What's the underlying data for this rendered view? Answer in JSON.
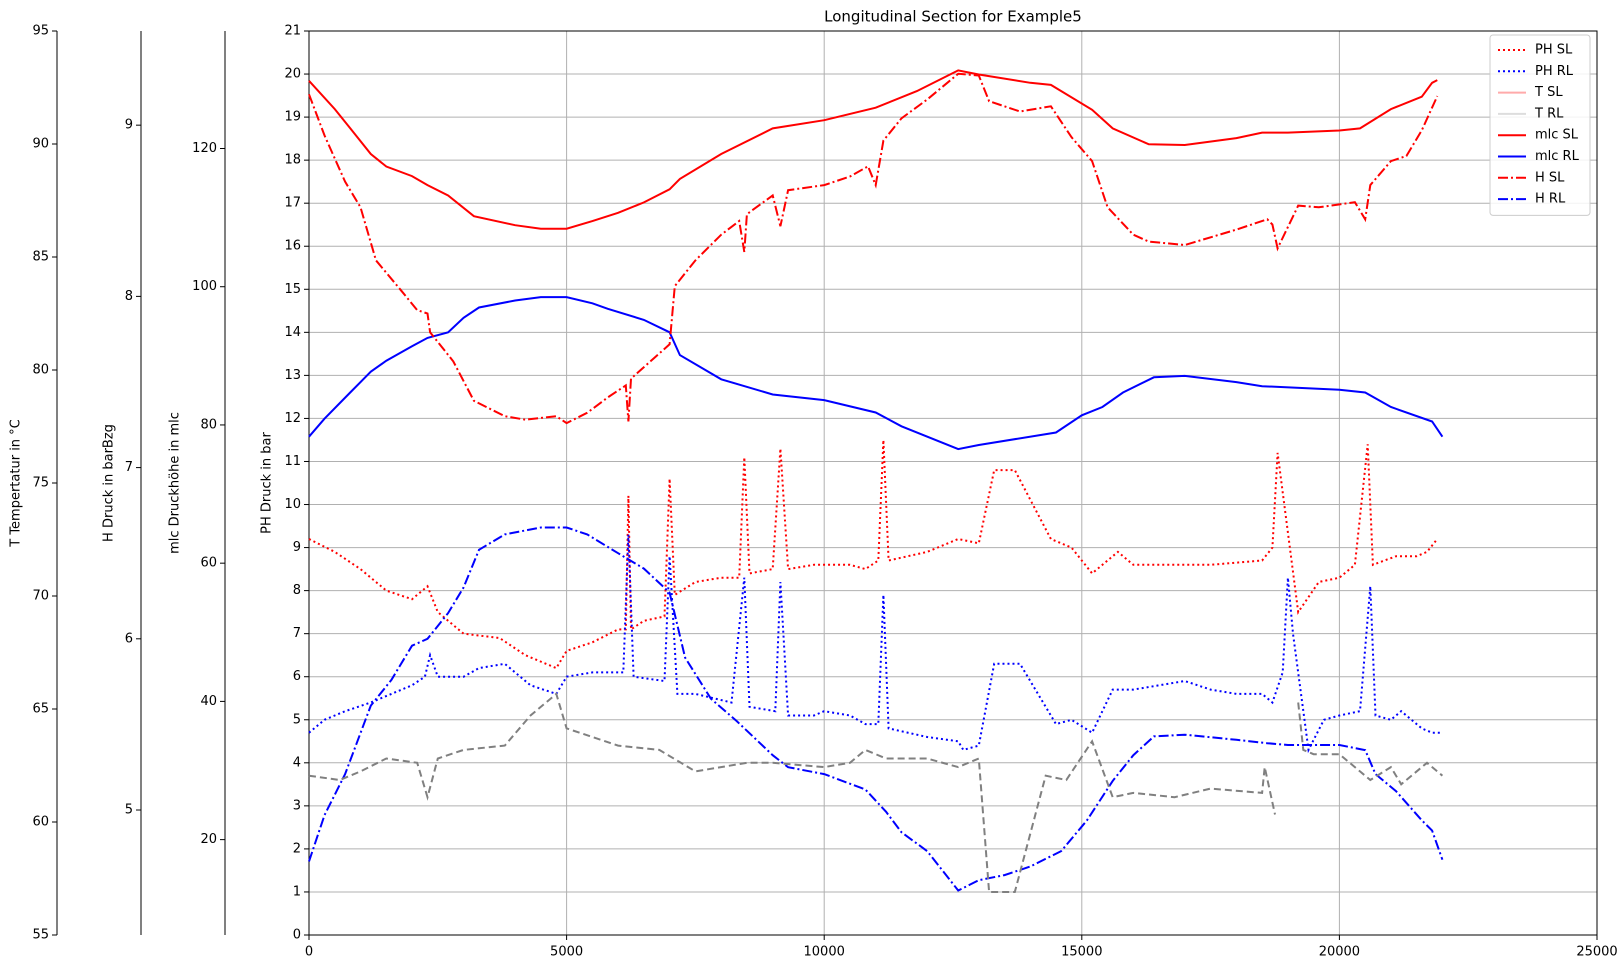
{
  "chart_data": {
    "type": "line",
    "title": "Longitudinal Section for Example5",
    "xlim": [
      0,
      25000
    ],
    "xticks": [
      0,
      5000,
      10000,
      15000,
      20000,
      25000
    ],
    "grid": true,
    "legend": "upper right",
    "axes": [
      {
        "label": "PH Druck in bar",
        "ylim": [
          0,
          21
        ],
        "yticks": [
          0,
          1,
          2,
          3,
          4,
          5,
          6,
          7,
          8,
          9,
          10,
          11,
          12,
          13,
          14,
          15,
          16,
          17,
          18,
          19,
          20,
          21
        ]
      },
      {
        "label": "mlc Druckhöhe in mlc",
        "ylim": [
          6.2,
          137
        ],
        "yticks": [
          20,
          40,
          60,
          80,
          100,
          120
        ]
      },
      {
        "label": "H Druck in barBzg",
        "ylim": [
          4.27,
          9.55
        ],
        "yticks": [
          5,
          6,
          7,
          8,
          9
        ]
      },
      {
        "label": "T Tempertatur in °C",
        "ylim": [
          55,
          95
        ],
        "yticks": [
          55,
          60,
          65,
          70,
          75,
          80,
          85,
          90,
          95
        ]
      }
    ],
    "series": [
      {
        "name": "PH SL",
        "color": "#ff0000",
        "dash": "dotted",
        "axis": 0,
        "x": [
          0,
          500,
          1000,
          1500,
          2000,
          2300,
          2500,
          3000,
          3700,
          4200,
          4800,
          5000,
          5500,
          6000,
          6150,
          6200,
          6250,
          6500,
          6900,
          7000,
          7100,
          7500,
          8000,
          8350,
          8450,
          8550,
          9000,
          9150,
          9300,
          9800,
          10000,
          10500,
          10800,
          11050,
          11150,
          11250,
          12000,
          12600,
          13000,
          13300,
          13700,
          14400,
          14800,
          15200,
          15700,
          16000,
          16500,
          17000,
          17500,
          18500,
          18700,
          18800,
          19200,
          19600,
          20000,
          20300,
          20550,
          20650,
          21100,
          21500,
          21700,
          21900
        ],
        "values": [
          9.2,
          8.9,
          8.5,
          8.0,
          7.8,
          8.1,
          7.5,
          7.0,
          6.9,
          6.5,
          6.2,
          6.6,
          6.8,
          7.1,
          7.1,
          10.2,
          7.1,
          7.3,
          7.4,
          10.6,
          7.9,
          8.2,
          8.3,
          8.3,
          11.1,
          8.4,
          8.5,
          11.3,
          8.5,
          8.6,
          8.6,
          8.6,
          8.5,
          8.7,
          11.5,
          8.7,
          8.9,
          9.2,
          9.1,
          10.8,
          10.8,
          9.2,
          9.0,
          8.4,
          8.9,
          8.6,
          8.6,
          8.6,
          8.6,
          8.7,
          9.0,
          11.2,
          7.5,
          8.2,
          8.3,
          8.6,
          11.4,
          8.6,
          8.8,
          8.8,
          8.9,
          9.2
        ]
      },
      {
        "name": "PH RL",
        "color": "#0000ff",
        "dash": "dotted",
        "axis": 0,
        "x": [
          0,
          300,
          700,
          1200,
          1600,
          2000,
          2250,
          2350,
          2500,
          3000,
          3300,
          3800,
          4300,
          4800,
          5000,
          5500,
          6100,
          6200,
          6300,
          6900,
          7000,
          7150,
          7500,
          8200,
          8450,
          8550,
          9050,
          9150,
          9300,
          9800,
          10000,
          10500,
          10800,
          11050,
          11150,
          11250,
          12000,
          12600,
          12700,
          13000,
          13300,
          13800,
          14500,
          14800,
          15200,
          15600,
          16000,
          16500,
          17000,
          17500,
          18000,
          18500,
          18700,
          18900,
          19000,
          19100,
          19400,
          19700,
          20000,
          20400,
          20600,
          20700,
          21000,
          21200,
          21600,
          21800,
          22000
        ],
        "values": [
          4.7,
          5.0,
          5.2,
          5.4,
          5.6,
          5.8,
          6.0,
          6.5,
          6.0,
          6.0,
          6.2,
          6.3,
          5.8,
          5.6,
          6.0,
          6.1,
          6.1,
          9.3,
          6.0,
          5.9,
          8.8,
          5.6,
          5.6,
          5.4,
          8.3,
          5.3,
          5.2,
          8.2,
          5.1,
          5.1,
          5.2,
          5.1,
          4.9,
          4.9,
          7.9,
          4.8,
          4.6,
          4.5,
          4.3,
          4.4,
          6.3,
          6.3,
          4.9,
          5.0,
          4.7,
          5.7,
          5.7,
          5.8,
          5.9,
          5.7,
          5.6,
          5.6,
          5.4,
          6.1,
          8.3,
          7.0,
          4.3,
          5.0,
          5.1,
          5.2,
          8.1,
          5.1,
          5.0,
          5.2,
          4.8,
          4.7,
          4.7
        ]
      },
      {
        "name": "T SL",
        "color": "#ffaaaa",
        "dash": "solid",
        "axis": 3,
        "x": [],
        "values": []
      },
      {
        "name": "T RL",
        "color": "#dddddd",
        "dash": "solid",
        "axis": 3,
        "x": [],
        "values": []
      },
      {
        "name": "mlc SL",
        "color": "#ff0000",
        "dash": "solid",
        "axis": 1,
        "x": [
          0,
          500,
          900,
          1200,
          1500,
          2000,
          2300,
          2700,
          3200,
          4000,
          4500,
          5000,
          5500,
          6000,
          6500,
          7000,
          7200,
          8000,
          9000,
          10000,
          11000,
          11800,
          12600,
          13000,
          14000,
          14400,
          15200,
          15600,
          16300,
          17000,
          18000,
          18500,
          19000,
          20000,
          20400,
          21000,
          21600,
          21800,
          21900
        ],
        "values": [
          129.8,
          125.7,
          122,
          119.2,
          117.4,
          116,
          114.7,
          113.2,
          110.2,
          108.9,
          108.4,
          108.4,
          109.5,
          110.7,
          112.2,
          114.1,
          115.6,
          119.2,
          122.9,
          124.1,
          125.9,
          128.3,
          131.3,
          130.7,
          129.5,
          129.2,
          125.6,
          122.9,
          120.6,
          120.5,
          121.5,
          122.3,
          122.3,
          122.6,
          122.9,
          125.7,
          127.5,
          129.5,
          129.9
        ]
      },
      {
        "name": "mlc RL",
        "color": "#0000ff",
        "dash": "solid",
        "axis": 1,
        "x": [
          0,
          300,
          800,
          1200,
          1500,
          2000,
          2300,
          2700,
          3000,
          3300,
          4000,
          4500,
          5000,
          5500,
          5800,
          6500,
          7000,
          7200,
          8000,
          9000,
          10000,
          11000,
          11500,
          12600,
          13000,
          14500,
          15000,
          15400,
          15800,
          16400,
          17000,
          18000,
          18500,
          20000,
          20500,
          21000,
          21800,
          22000
        ],
        "values": [
          78.3,
          80.9,
          84.7,
          87.7,
          89.3,
          91.4,
          92.6,
          93.4,
          95.5,
          97,
          98,
          98.5,
          98.5,
          97.6,
          96.8,
          95.2,
          93.4,
          90.1,
          86.6,
          84.4,
          83.6,
          81.8,
          79.8,
          76.5,
          77.1,
          78.9,
          81.4,
          82.6,
          84.7,
          86.9,
          87.1,
          86.2,
          85.6,
          85.1,
          84.7,
          82.6,
          80.5,
          78.3
        ]
      },
      {
        "name": "H SL",
        "color": "#ff0000",
        "dash": "dashdot",
        "axis": 2,
        "x": [
          0,
          300,
          700,
          1000,
          1300,
          1800,
          2100,
          2300,
          2350,
          2800,
          3200,
          3800,
          4200,
          4800,
          5000,
          5400,
          5800,
          6150,
          6200,
          6250,
          6700,
          7000,
          7100,
          7500,
          8000,
          8350,
          8450,
          8500,
          9000,
          9150,
          9300,
          10000,
          10500,
          10850,
          11000,
          11150,
          11500,
          12000,
          12600,
          13000,
          13200,
          13800,
          14400,
          14800,
          15200,
          15500,
          16000,
          16300,
          17000,
          18000,
          18600,
          18700,
          18800,
          19200,
          19600,
          20300,
          20500,
          20600,
          21000,
          21300,
          21600,
          21900
        ],
        "values": [
          9.18,
          8.94,
          8.67,
          8.52,
          8.21,
          8.03,
          7.92,
          7.9,
          7.79,
          7.62,
          7.39,
          7.3,
          7.28,
          7.3,
          7.26,
          7.32,
          7.41,
          7.48,
          7.27,
          7.52,
          7.64,
          7.72,
          8.06,
          8.21,
          8.36,
          8.44,
          8.26,
          8.48,
          8.59,
          8.41,
          8.62,
          8.65,
          8.7,
          8.76,
          8.65,
          8.91,
          9.04,
          9.15,
          9.3,
          9.29,
          9.14,
          9.08,
          9.11,
          8.93,
          8.79,
          8.52,
          8.36,
          8.32,
          8.3,
          8.39,
          8.45,
          8.42,
          8.28,
          8.53,
          8.52,
          8.55,
          8.45,
          8.65,
          8.79,
          8.82,
          8.97,
          9.17
        ]
      },
      {
        "name": "H RL",
        "color": "#0000ff",
        "dash": "dashdot",
        "axis": 2,
        "x": [
          0,
          300,
          700,
          1200,
          1600,
          2000,
          2300,
          2700,
          3000,
          3300,
          3800,
          4500,
          5000,
          5400,
          6000,
          6500,
          7000,
          7300,
          7800,
          8300,
          9000,
          9300,
          10000,
          10800,
          11200,
          11500,
          12000,
          12600,
          13000,
          13500,
          14000,
          14600,
          15100,
          15600,
          16000,
          16400,
          17000,
          18000,
          18600,
          19000,
          19500,
          20000,
          20500,
          20700,
          21100,
          21600,
          21800,
          22000
        ],
        "values": [
          4.7,
          4.97,
          5.21,
          5.61,
          5.76,
          5.96,
          6.0,
          6.15,
          6.3,
          6.52,
          6.61,
          6.65,
          6.65,
          6.61,
          6.5,
          6.41,
          6.27,
          5.89,
          5.65,
          5.52,
          5.32,
          5.25,
          5.21,
          5.12,
          4.99,
          4.87,
          4.76,
          4.53,
          4.59,
          4.62,
          4.67,
          4.76,
          4.94,
          5.17,
          5.32,
          5.43,
          5.44,
          5.41,
          5.39,
          5.38,
          5.38,
          5.38,
          5.35,
          5.21,
          5.11,
          4.94,
          4.88,
          4.71
        ]
      },
      {
        "color": "#808080",
        "dash": "dashed",
        "axis": 0,
        "x": [
          0,
          600,
          1000,
          1500,
          2100,
          2300,
          2500,
          3000,
          3800,
          4300,
          4800,
          5000,
          5500,
          6000,
          6800,
          7500,
          8500,
          9000,
          10000,
          10500,
          10800,
          11200,
          12000,
          12600,
          13000,
          13200,
          13700,
          14300,
          14700,
          15200,
          15600,
          16000,
          16800,
          17500,
          18500,
          18550,
          18750,
          18900,
          19200,
          19300,
          19500,
          20000,
          20400,
          20600,
          21000,
          21200,
          21700,
          22000
        ],
        "values": [
          3.7,
          3.6,
          3.8,
          4.1,
          4.0,
          3.2,
          4.1,
          4.3,
          4.4,
          5.1,
          5.6,
          4.8,
          4.6,
          4.4,
          4.3,
          3.8,
          4.0,
          4.0,
          3.9,
          4.0,
          4.3,
          4.1,
          4.1,
          3.9,
          4.1,
          1.0,
          1.0,
          3.7,
          3.6,
          4.5,
          3.2,
          3.3,
          3.2,
          3.4,
          3.3,
          3.9,
          2.8,
          null,
          5.4,
          4.3,
          4.2,
          4.2,
          3.8,
          3.6,
          3.9,
          3.5,
          4.0,
          3.7
        ]
      }
    ]
  }
}
